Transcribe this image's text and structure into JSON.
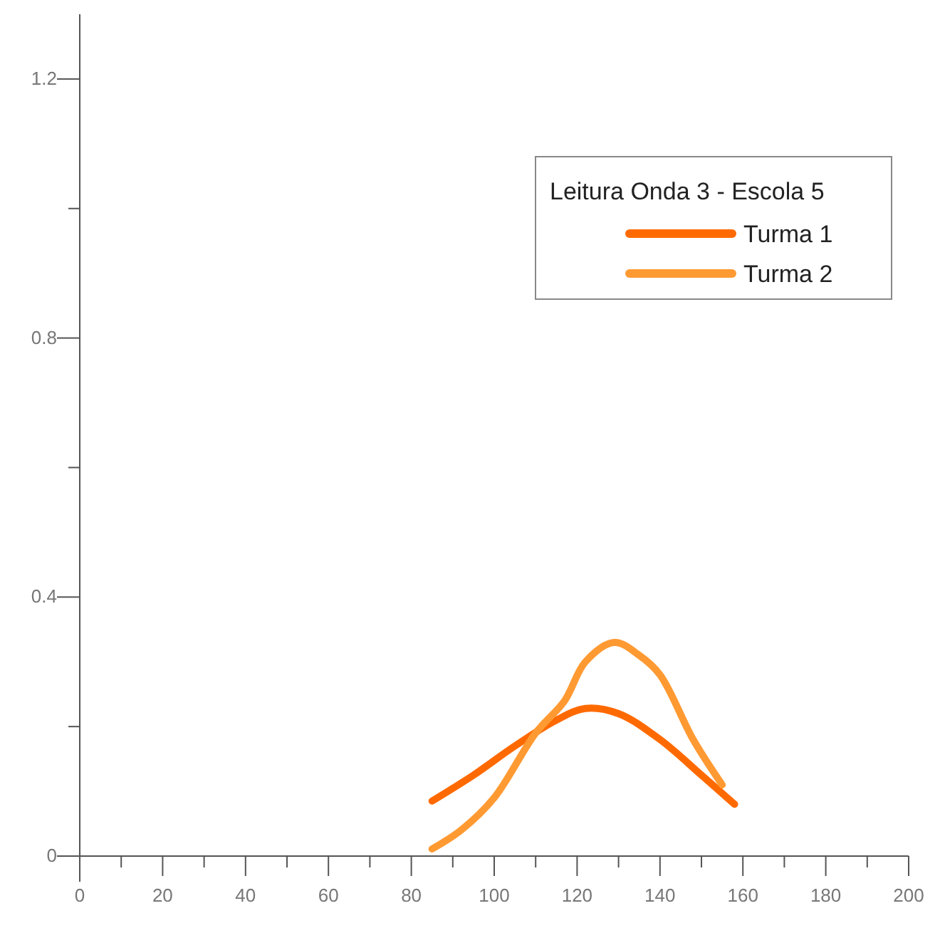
{
  "chart_data": {
    "type": "line",
    "legend_title": "Leitura Onda 3 - Escola 5",
    "legend": "top right",
    "grid": false,
    "marker": "none",
    "line_style": "solid",
    "xlim": [
      0,
      200
    ],
    "ylim": [
      0,
      1.3
    ],
    "xticks": [
      0,
      {
        "value": 10,
        "label": null
      },
      20,
      {
        "value": 30,
        "label": null
      },
      40,
      {
        "value": 50,
        "label": null
      },
      60,
      {
        "value": 70,
        "label": null
      },
      80,
      {
        "value": 90,
        "label": null
      },
      100,
      {
        "value": 110,
        "label": null
      },
      120,
      {
        "value": 130,
        "label": null
      },
      140,
      {
        "value": 150,
        "label": null
      },
      160,
      {
        "value": 170,
        "label": null
      },
      180,
      {
        "value": 190,
        "label": null
      },
      200
    ],
    "yticks": [
      0,
      {
        "value": 0.2,
        "label": null
      },
      0.4,
      {
        "value": 0.6,
        "label": null
      },
      0.8,
      {
        "value": 1.0,
        "label": null
      },
      1.2
    ],
    "series": [
      {
        "name": "Turma 1",
        "color": "#ff6a00",
        "x": [
          85,
          95,
          105,
          115,
          122,
          130,
          140,
          150,
          158
        ],
        "values": [
          0.085,
          0.125,
          0.17,
          0.21,
          0.228,
          0.22,
          0.18,
          0.125,
          0.08
        ]
      },
      {
        "name": "Turma 2",
        "color": "#ff9a33",
        "x": [
          85,
          92,
          100,
          110,
          117,
          122,
          129,
          135,
          140,
          148,
          155
        ],
        "values": [
          0.011,
          0.04,
          0.09,
          0.19,
          0.24,
          0.3,
          0.33,
          0.31,
          0.28,
          0.18,
          0.11
        ]
      }
    ]
  }
}
